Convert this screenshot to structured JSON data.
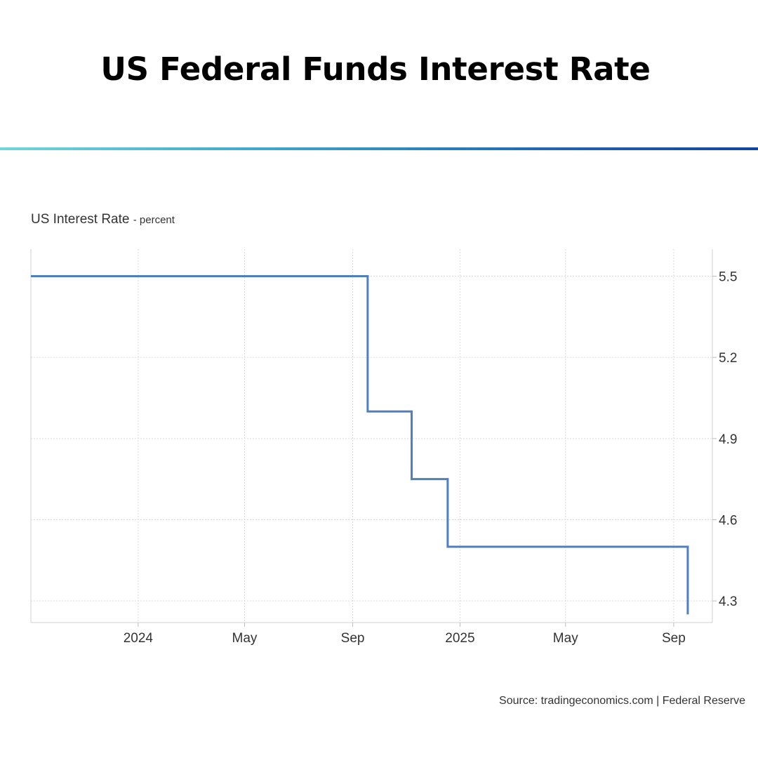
{
  "headline": "US Federal Funds Interest Rate",
  "chart_data": {
    "type": "line",
    "step": true,
    "title": "US Interest Rate",
    "unit": "- percent",
    "source": "Source: tradingeconomics.com | Federal Reserve",
    "x_range": [
      "2023-09-01",
      "2025-10-15"
    ],
    "ylim": [
      4.22,
      5.6
    ],
    "y_ticks": [
      5.5,
      5.2,
      4.9,
      4.6,
      4.3
    ],
    "y_tick_labels": [
      "5.5",
      "5.2",
      "4.9",
      "4.6",
      "4.3"
    ],
    "x_ticks": [
      {
        "date": "2024-01-01",
        "label": "2024"
      },
      {
        "date": "2024-05-01",
        "label": "May"
      },
      {
        "date": "2024-09-01",
        "label": "Sep"
      },
      {
        "date": "2025-01-01",
        "label": "2025"
      },
      {
        "date": "2025-05-01",
        "label": "May"
      },
      {
        "date": "2025-09-01",
        "label": "Sep"
      }
    ],
    "grid": true,
    "line_color": "#4f7fbd",
    "series": [
      {
        "x": [
          "2023-09-01",
          "2024-09-18",
          "2024-11-07",
          "2024-12-18",
          "2025-09-17"
        ],
        "y": [
          5.5,
          5.0,
          4.75,
          4.5,
          4.25
        ]
      }
    ]
  }
}
